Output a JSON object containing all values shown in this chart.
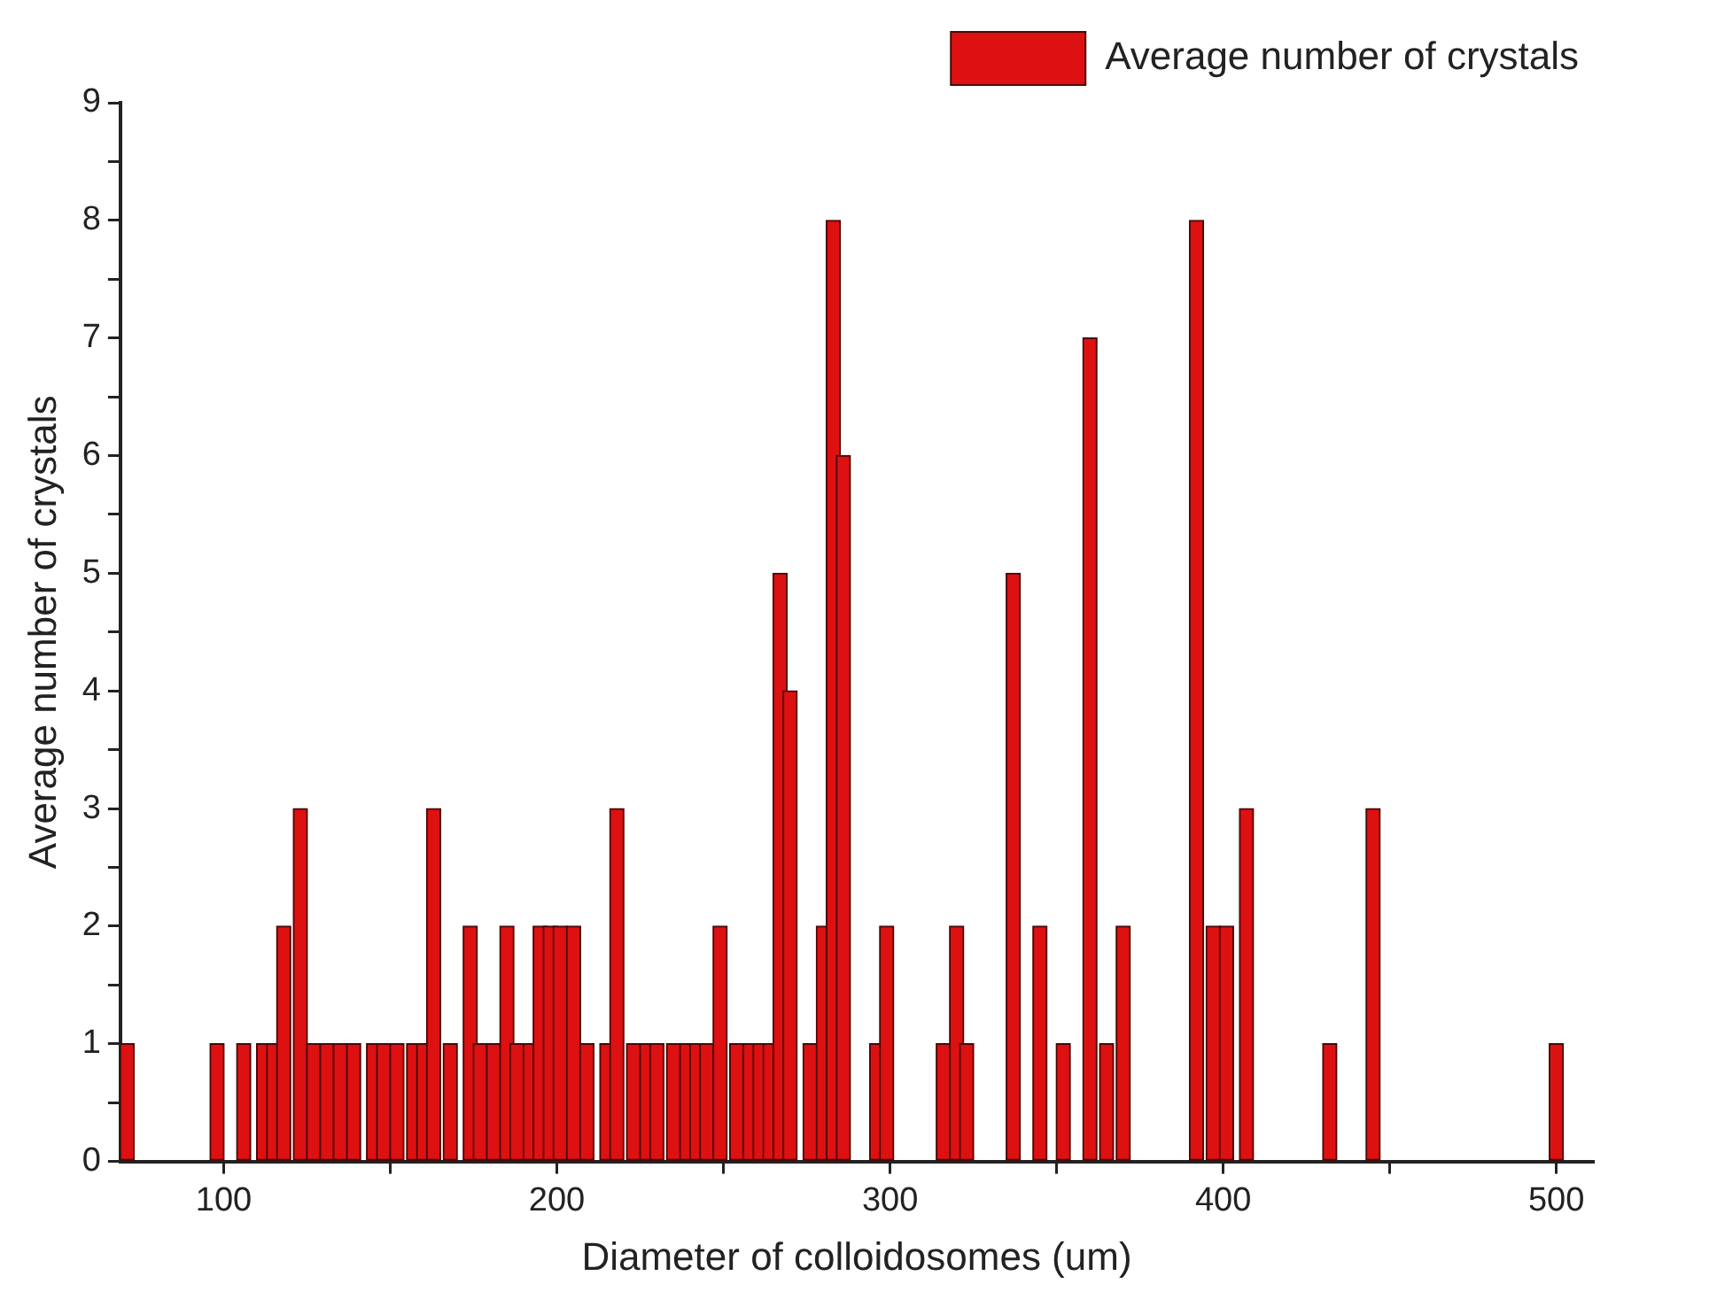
{
  "chart_data": {
    "type": "bar",
    "xlabel": "Diameter of colloidosomes (um)",
    "ylabel": "Average number of crystals",
    "x": [
      71,
      98,
      106,
      112,
      115,
      118,
      123,
      127,
      131,
      135,
      139,
      145,
      148,
      152,
      157,
      160,
      163,
      168,
      174,
      177,
      181,
      185,
      188,
      192,
      195,
      198,
      201,
      205,
      209,
      215,
      218,
      223,
      227,
      230,
      235,
      239,
      242,
      245,
      249,
      254,
      258,
      261,
      264,
      267,
      270,
      276,
      280,
      283,
      286,
      296,
      299,
      316,
      320,
      323,
      337,
      345,
      352,
      360,
      365,
      370,
      392,
      397,
      401,
      407,
      432,
      445,
      500
    ],
    "series": [
      {
        "name": "Average number of crystals",
        "color": "#dd1111",
        "values": [
          1,
          1,
          1,
          1,
          1,
          2,
          3,
          1,
          1,
          1,
          1,
          1,
          1,
          1,
          1,
          1,
          3,
          1,
          2,
          1,
          1,
          2,
          1,
          1,
          2,
          2,
          2,
          2,
          1,
          1,
          3,
          1,
          1,
          1,
          1,
          1,
          1,
          1,
          2,
          1,
          1,
          1,
          1,
          5,
          4,
          1,
          2,
          8,
          6,
          1,
          2,
          1,
          2,
          1,
          5,
          2,
          1,
          7,
          1,
          2,
          8,
          2,
          2,
          3,
          1,
          3,
          1
        ]
      }
    ],
    "xlim": [
      69,
      511
    ],
    "xticks": [
      100,
      {
        "value": 150,
        "label": null
      },
      200,
      {
        "value": 250,
        "label": null
      },
      300,
      {
        "value": 350,
        "label": null
      },
      400,
      {
        "value": 450,
        "label": null
      },
      500
    ],
    "ylim": [
      0,
      9
    ],
    "yticks": [
      0,
      {
        "value": 0.5,
        "label": null
      },
      1,
      {
        "value": 1.5,
        "label": null
      },
      2,
      {
        "value": 2.5,
        "label": null
      },
      3,
      {
        "value": 3.5,
        "label": null
      },
      4,
      {
        "value": 4.5,
        "label": null
      },
      5,
      {
        "value": 5.5,
        "label": null
      },
      6,
      {
        "value": 6.5,
        "label": null
      },
      7,
      {
        "value": 7.5,
        "label": null
      },
      8,
      {
        "value": 8.5,
        "label": null
      },
      9
    ],
    "grid": false,
    "legend": "top right"
  }
}
